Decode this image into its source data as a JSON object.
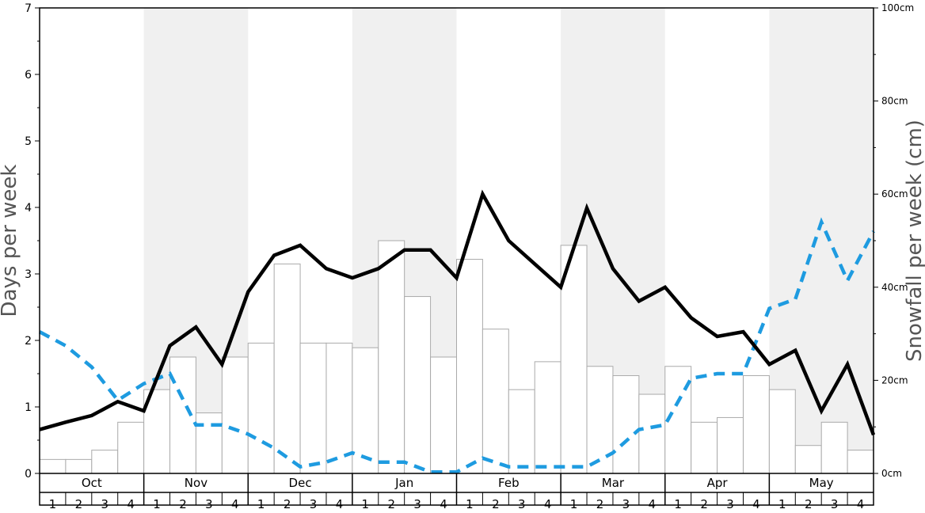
{
  "chart_data": {
    "type": "bar",
    "ylabel_left": "Days per week",
    "ylabel_right": "Snowfall per week (cm)",
    "y_left": {
      "min": 0,
      "max": 7,
      "ticks": [
        "0",
        "1",
        "2",
        "3",
        "4",
        "5",
        "6",
        "7"
      ]
    },
    "y_right": {
      "min": 0,
      "max": 100,
      "ticks": [
        "0cm",
        "20cm",
        "40cm",
        "60cm",
        "80cm",
        "100cm"
      ]
    },
    "months": [
      "Oct",
      "Nov",
      "Dec",
      "Jan",
      "Feb",
      "Mar",
      "Apr",
      "May"
    ],
    "week_labels": [
      "1",
      "2",
      "3",
      "4"
    ],
    "shaded_months": [
      "Nov",
      "Jan",
      "Mar",
      "May"
    ],
    "colors": {
      "bar_fill": "#ffffff",
      "bar_stroke": "#aaaaaa",
      "shade": "#f0f0f0",
      "days_line": "#000000",
      "snow_line": "#1e9be0"
    },
    "snowfall_cm": [
      3,
      3,
      5,
      11,
      18,
      25,
      13,
      25,
      28,
      45,
      28,
      28,
      27,
      50,
      38,
      25,
      46,
      31,
      18,
      24,
      49,
      23,
      21,
      17,
      23,
      11,
      12,
      21,
      18,
      6,
      11,
      5
    ],
    "days_per_week": [
      0.66,
      0.77,
      0.87,
      1.08,
      0.94,
      1.92,
      2.2,
      1.64,
      2.73,
      3.28,
      3.43,
      3.08,
      2.94,
      3.08,
      3.36,
      3.36,
      2.94,
      4.2,
      3.5,
      3.15,
      2.8,
      3.99,
      3.08,
      2.59,
      2.8,
      2.34,
      2.06,
      2.13,
      1.64,
      1.85,
      0.94,
      1.64,
      0.58
    ],
    "snow_line_days": [
      2.13,
      1.92,
      1.6,
      1.1,
      1.35,
      1.5,
      0.73,
      0.73,
      0.59,
      0.38,
      0.1,
      0.17,
      0.31,
      0.17,
      0.17,
      0.02,
      0.02,
      0.23,
      0.1,
      0.1,
      0.1,
      0.1,
      0.31,
      0.66,
      0.73,
      1.43,
      1.5,
      1.5,
      2.48,
      2.62,
      3.78,
      2.9,
      3.64
    ]
  }
}
